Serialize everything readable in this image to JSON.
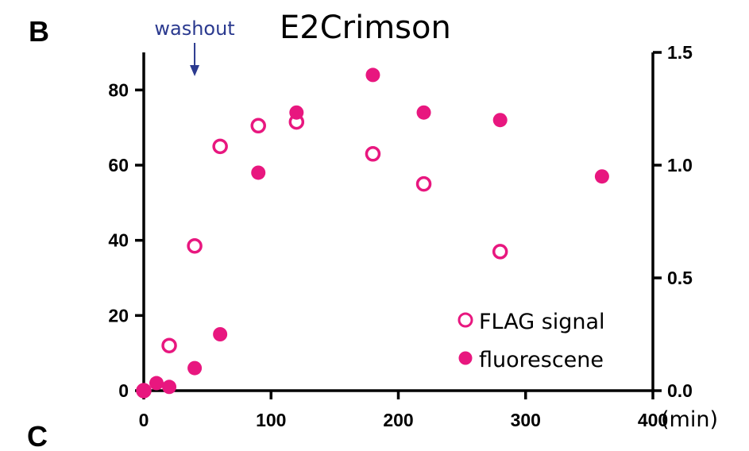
{
  "panel_labels": {
    "top": "B",
    "bottom": "C"
  },
  "chart_data": {
    "type": "scatter",
    "title": "E2Crimson",
    "xlabel": "(min)",
    "xlim": [
      0,
      400
    ],
    "ylim_left": [
      0,
      90
    ],
    "ylim_right": [
      0,
      1.5
    ],
    "x_ticks": [
      "0",
      "100",
      "200",
      "300",
      "400"
    ],
    "y_left_ticks": [
      "0",
      "20",
      "40",
      "60",
      "80"
    ],
    "y_right_ticks": [
      "0.0",
      "0.5",
      "1.0",
      "1.5"
    ],
    "annotation": {
      "text": "washout",
      "x": 20,
      "color": "#2b3a8f"
    },
    "legend_position": "bottom-right",
    "marker_color": "#e8177f",
    "series": [
      {
        "name": "FLAG signal",
        "axis": "left",
        "marker": "open-circle",
        "x": [
          0,
          20,
          40,
          60,
          90,
          120,
          180,
          220,
          280
        ],
        "y": [
          0,
          12,
          38.5,
          65,
          70.5,
          71.5,
          63,
          55,
          37
        ]
      },
      {
        "name": "fluorescene",
        "axis": "left",
        "marker": "filled-circle",
        "x": [
          0,
          10,
          20,
          40,
          60,
          90,
          120,
          180,
          220,
          280,
          360
        ],
        "y": [
          0,
          2,
          1,
          6,
          15,
          58,
          74,
          84,
          74,
          72,
          57
        ]
      }
    ]
  }
}
